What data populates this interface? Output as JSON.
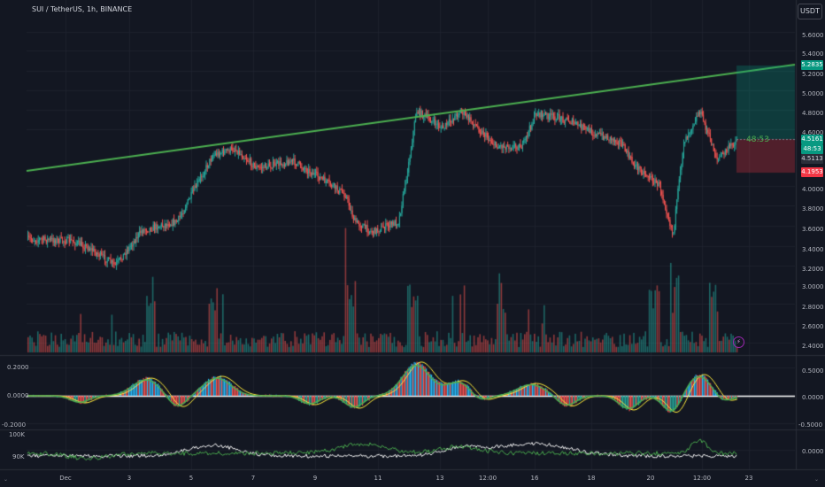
{
  "header": {
    "title": "SUI / TetherUS, 1h, BINANCE"
  },
  "currency_button": "USDT",
  "countdown": "48:53",
  "price_axis": {
    "labels": [
      "5.6000",
      "5.4000",
      "5.2000",
      "5.0000",
      "4.8000",
      "4.6000",
      "4.0000",
      "3.8000",
      "3.6000",
      "3.4000",
      "3.2000",
      "3.0000",
      "2.8000",
      "2.6000",
      "2.4000"
    ],
    "tags": [
      {
        "text": "5.2835",
        "color": "#089981"
      },
      {
        "text": "4.5161",
        "color": "#089981"
      },
      {
        "text": "48:53",
        "color": "#089981"
      },
      {
        "text": "4.5113",
        "color": "#2a2e39"
      },
      {
        "text": "4.1953",
        "color": "#f23645"
      }
    ]
  },
  "oscillator_left": {
    "labels": [
      "0.2000",
      "0.0000",
      "-0.2000",
      "100K",
      "90K"
    ]
  },
  "oscillator_right": {
    "labels": [
      "0.5000",
      "0.0000",
      "-0.5000",
      "0.0000"
    ]
  },
  "time_axis": {
    "labels": [
      "Dec",
      "3",
      "5",
      "7",
      "9",
      "11",
      "13",
      "12:00",
      "16",
      "18",
      "20",
      "12:00",
      "23"
    ]
  },
  "colors": {
    "up": "#26a69a",
    "down": "#ef5350",
    "trendline": "#4caf50",
    "bg": "#131722"
  },
  "icons": [
    "lightning-icon"
  ]
}
